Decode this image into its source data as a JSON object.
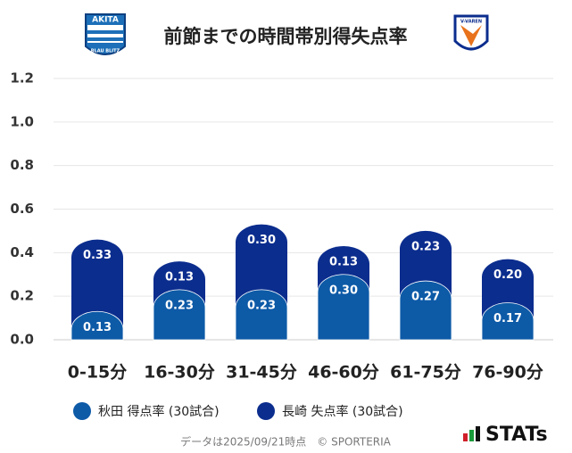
{
  "chart_data": {
    "type": "bar",
    "title": "前節までの時間帯別得失点率",
    "logos": [
      "AKITA",
      "BLAU BLITZ",
      "V-VAREN"
    ],
    "categories": [
      "0-15分",
      "16-30分",
      "31-45分",
      "46-60分",
      "61-75分",
      "76-90分"
    ],
    "series": [
      {
        "name": "秋田 得点率 (30試合)",
        "color": "#0d5aa7",
        "values": [
          0.13,
          0.23,
          0.23,
          0.3,
          0.27,
          0.17
        ],
        "value_labels": [
          "0.13",
          "0.23",
          "0.23",
          "0.30",
          "0.27",
          "0.17"
        ]
      },
      {
        "name": "長崎 失点率 (30試合)",
        "color": "#0b2d8e",
        "values": [
          0.33,
          0.13,
          0.3,
          0.13,
          0.23,
          0.2
        ],
        "value_labels": [
          "0.33",
          "0.13",
          "0.30",
          "0.13",
          "0.23",
          "0.20"
        ]
      }
    ],
    "stacked": true,
    "ylim": [
      0,
      1.2
    ],
    "yticks": [
      {
        "value": 0,
        "label": "0.0"
      },
      0.2,
      0.4,
      0.6,
      0.8,
      {
        "value": 1,
        "label": "1.0"
      },
      1.2
    ],
    "grid": true,
    "footer": "データは2025/09/21時点　© SPORTERIA",
    "brand": "STATs"
  }
}
